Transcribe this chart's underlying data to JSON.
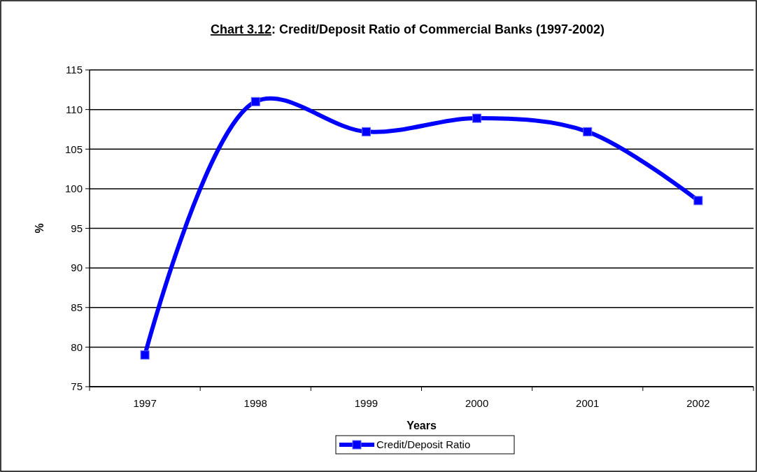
{
  "chart_data": {
    "type": "line",
    "title": "Chart 3.12: Credit/Deposit Ratio of Commercial Banks (1997-2002)",
    "xlabel": "Years",
    "ylabel": "%",
    "categories": [
      "1997",
      "1998",
      "1999",
      "2000",
      "2001",
      "2002"
    ],
    "series": [
      {
        "name": "Credit/Deposit Ratio",
        "color": "#0000ff",
        "values": [
          79.0,
          111.0,
          107.2,
          108.9,
          107.2,
          98.5
        ]
      }
    ],
    "ylim": [
      75,
      115
    ],
    "yticks": [
      75,
      80,
      85,
      90,
      95,
      100,
      105,
      110,
      115
    ],
    "grid": "y",
    "legend": "bottom",
    "marker": "square",
    "line_style": "solid"
  }
}
